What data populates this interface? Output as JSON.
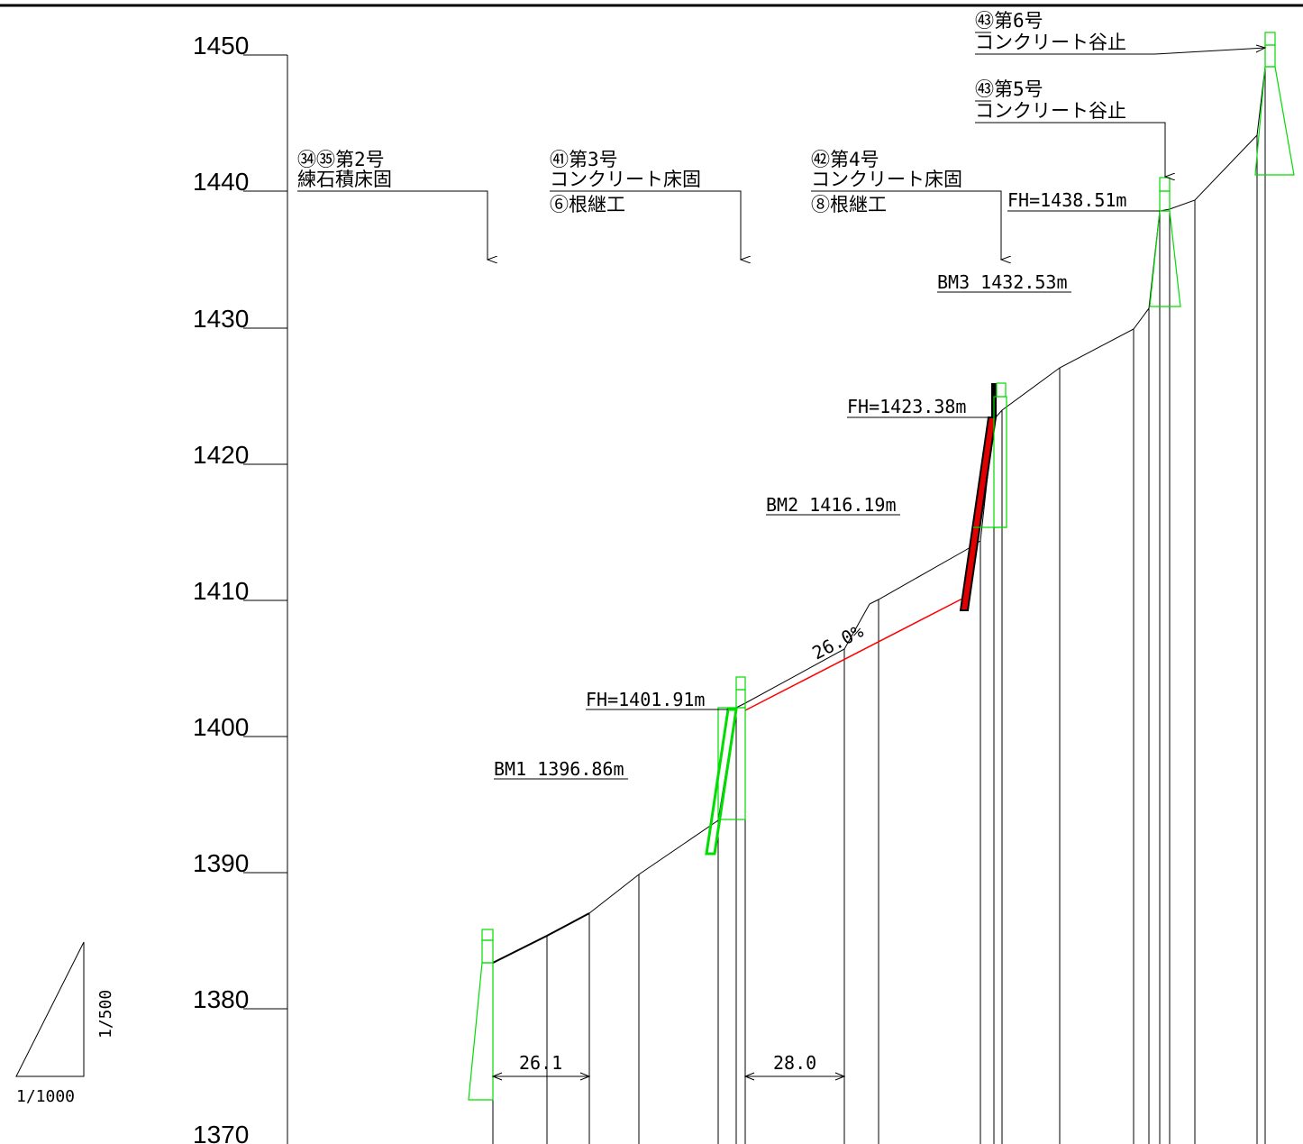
{
  "elevation_axis": {
    "labels": [
      "1450",
      "1440",
      "1430",
      "1420",
      "1410",
      "1400",
      "1390",
      "1380",
      "1370"
    ]
  },
  "structures": {
    "no2": {
      "line1": "㉞㉟第2号",
      "line2": "練石積床固"
    },
    "no3": {
      "line1": "㊶第3号",
      "line2": "コンクリート床固",
      "line3": "⑥根継工"
    },
    "no4": {
      "line1": "㊷第4号",
      "line2": "コンクリート床固",
      "line3": "⑧根継工"
    },
    "no5": {
      "line1": "㊸第5号",
      "line2": "コンクリート谷止"
    },
    "no6": {
      "line1": "㊸第6号",
      "line2": "コンクリート谷止"
    }
  },
  "elevation_marks": {
    "fh1": "FH=1401.91m",
    "fh2": "FH=1423.38m",
    "fh3": "FH=1438.51m",
    "bm1": "BM1 1396.86m",
    "bm2": "BM2 1416.19m",
    "bm3": "BM3 1432.53m"
  },
  "slope_label": "26.0%",
  "dimensions": {
    "span1": "26.1",
    "span2": "28.0"
  },
  "scale": {
    "horizontal": "1/1000",
    "vertical": "1/500"
  },
  "colors": {
    "ground": "#000000",
    "structure": "#00dd00",
    "design_line": "#ff0000",
    "fill_red": "#e00000"
  }
}
